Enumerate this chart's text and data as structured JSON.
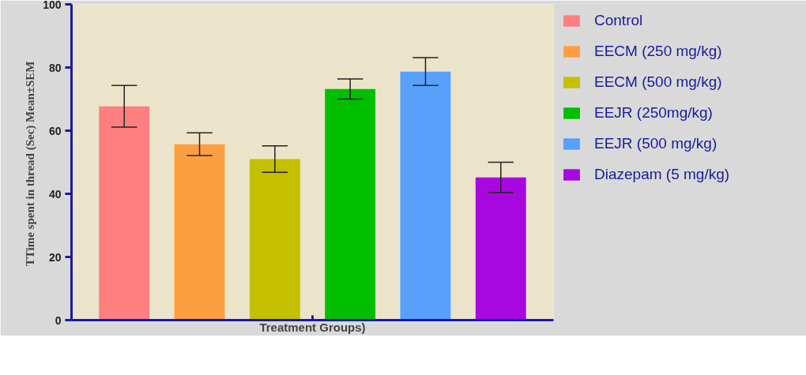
{
  "chart_data": {
    "type": "bar",
    "xlabel": "Treatment Groups)",
    "ylabel": "TTime spent in thread  (Sec) Mean±SEM",
    "categories": [
      null,
      null,
      null,
      null,
      null,
      null
    ],
    "series": [
      {
        "name": "Control",
        "color": "#fd7f80",
        "values": [
          67.7,
          null,
          null,
          null,
          null,
          null
        ],
        "errors": [
          6.6,
          null,
          null,
          null,
          null,
          null
        ]
      },
      {
        "name": "EECM (250 mg/kg)",
        "color": "#fd9f40",
        "values": [
          null,
          55.7,
          null,
          null,
          null,
          null
        ],
        "errors": [
          null,
          3.6,
          null,
          null,
          null,
          null
        ]
      },
      {
        "name": "EECM (500 mg/kg)",
        "color": "#c4c000",
        "values": [
          null,
          null,
          51.0,
          null,
          null,
          null
        ],
        "errors": [
          null,
          null,
          4.2,
          null,
          null,
          null
        ]
      },
      {
        "name": "EEJR (250mg/kg)",
        "color": "#00bf00",
        "values": [
          null,
          null,
          null,
          73.2,
          null,
          null
        ],
        "errors": [
          null,
          null,
          null,
          3.2,
          null,
          null
        ]
      },
      {
        "name": "EEJR (500 mg/kg)",
        "color": "#57a0fc",
        "values": [
          null,
          null,
          null,
          null,
          78.7,
          null
        ],
        "errors": [
          null,
          null,
          null,
          null,
          4.4,
          null
        ]
      },
      {
        "name": "Diazepam (5 mg/kg)",
        "color": "#a808e0",
        "values": [
          null,
          null,
          null,
          null,
          null,
          45.2
        ],
        "errors": [
          null,
          null,
          null,
          null,
          null,
          4.8
        ]
      }
    ],
    "ylim": [
      0,
      100
    ],
    "yticks": [
      0,
      20,
      40,
      60,
      80,
      100
    ],
    "tick_labels": "y",
    "grid": false,
    "legend": "right"
  }
}
